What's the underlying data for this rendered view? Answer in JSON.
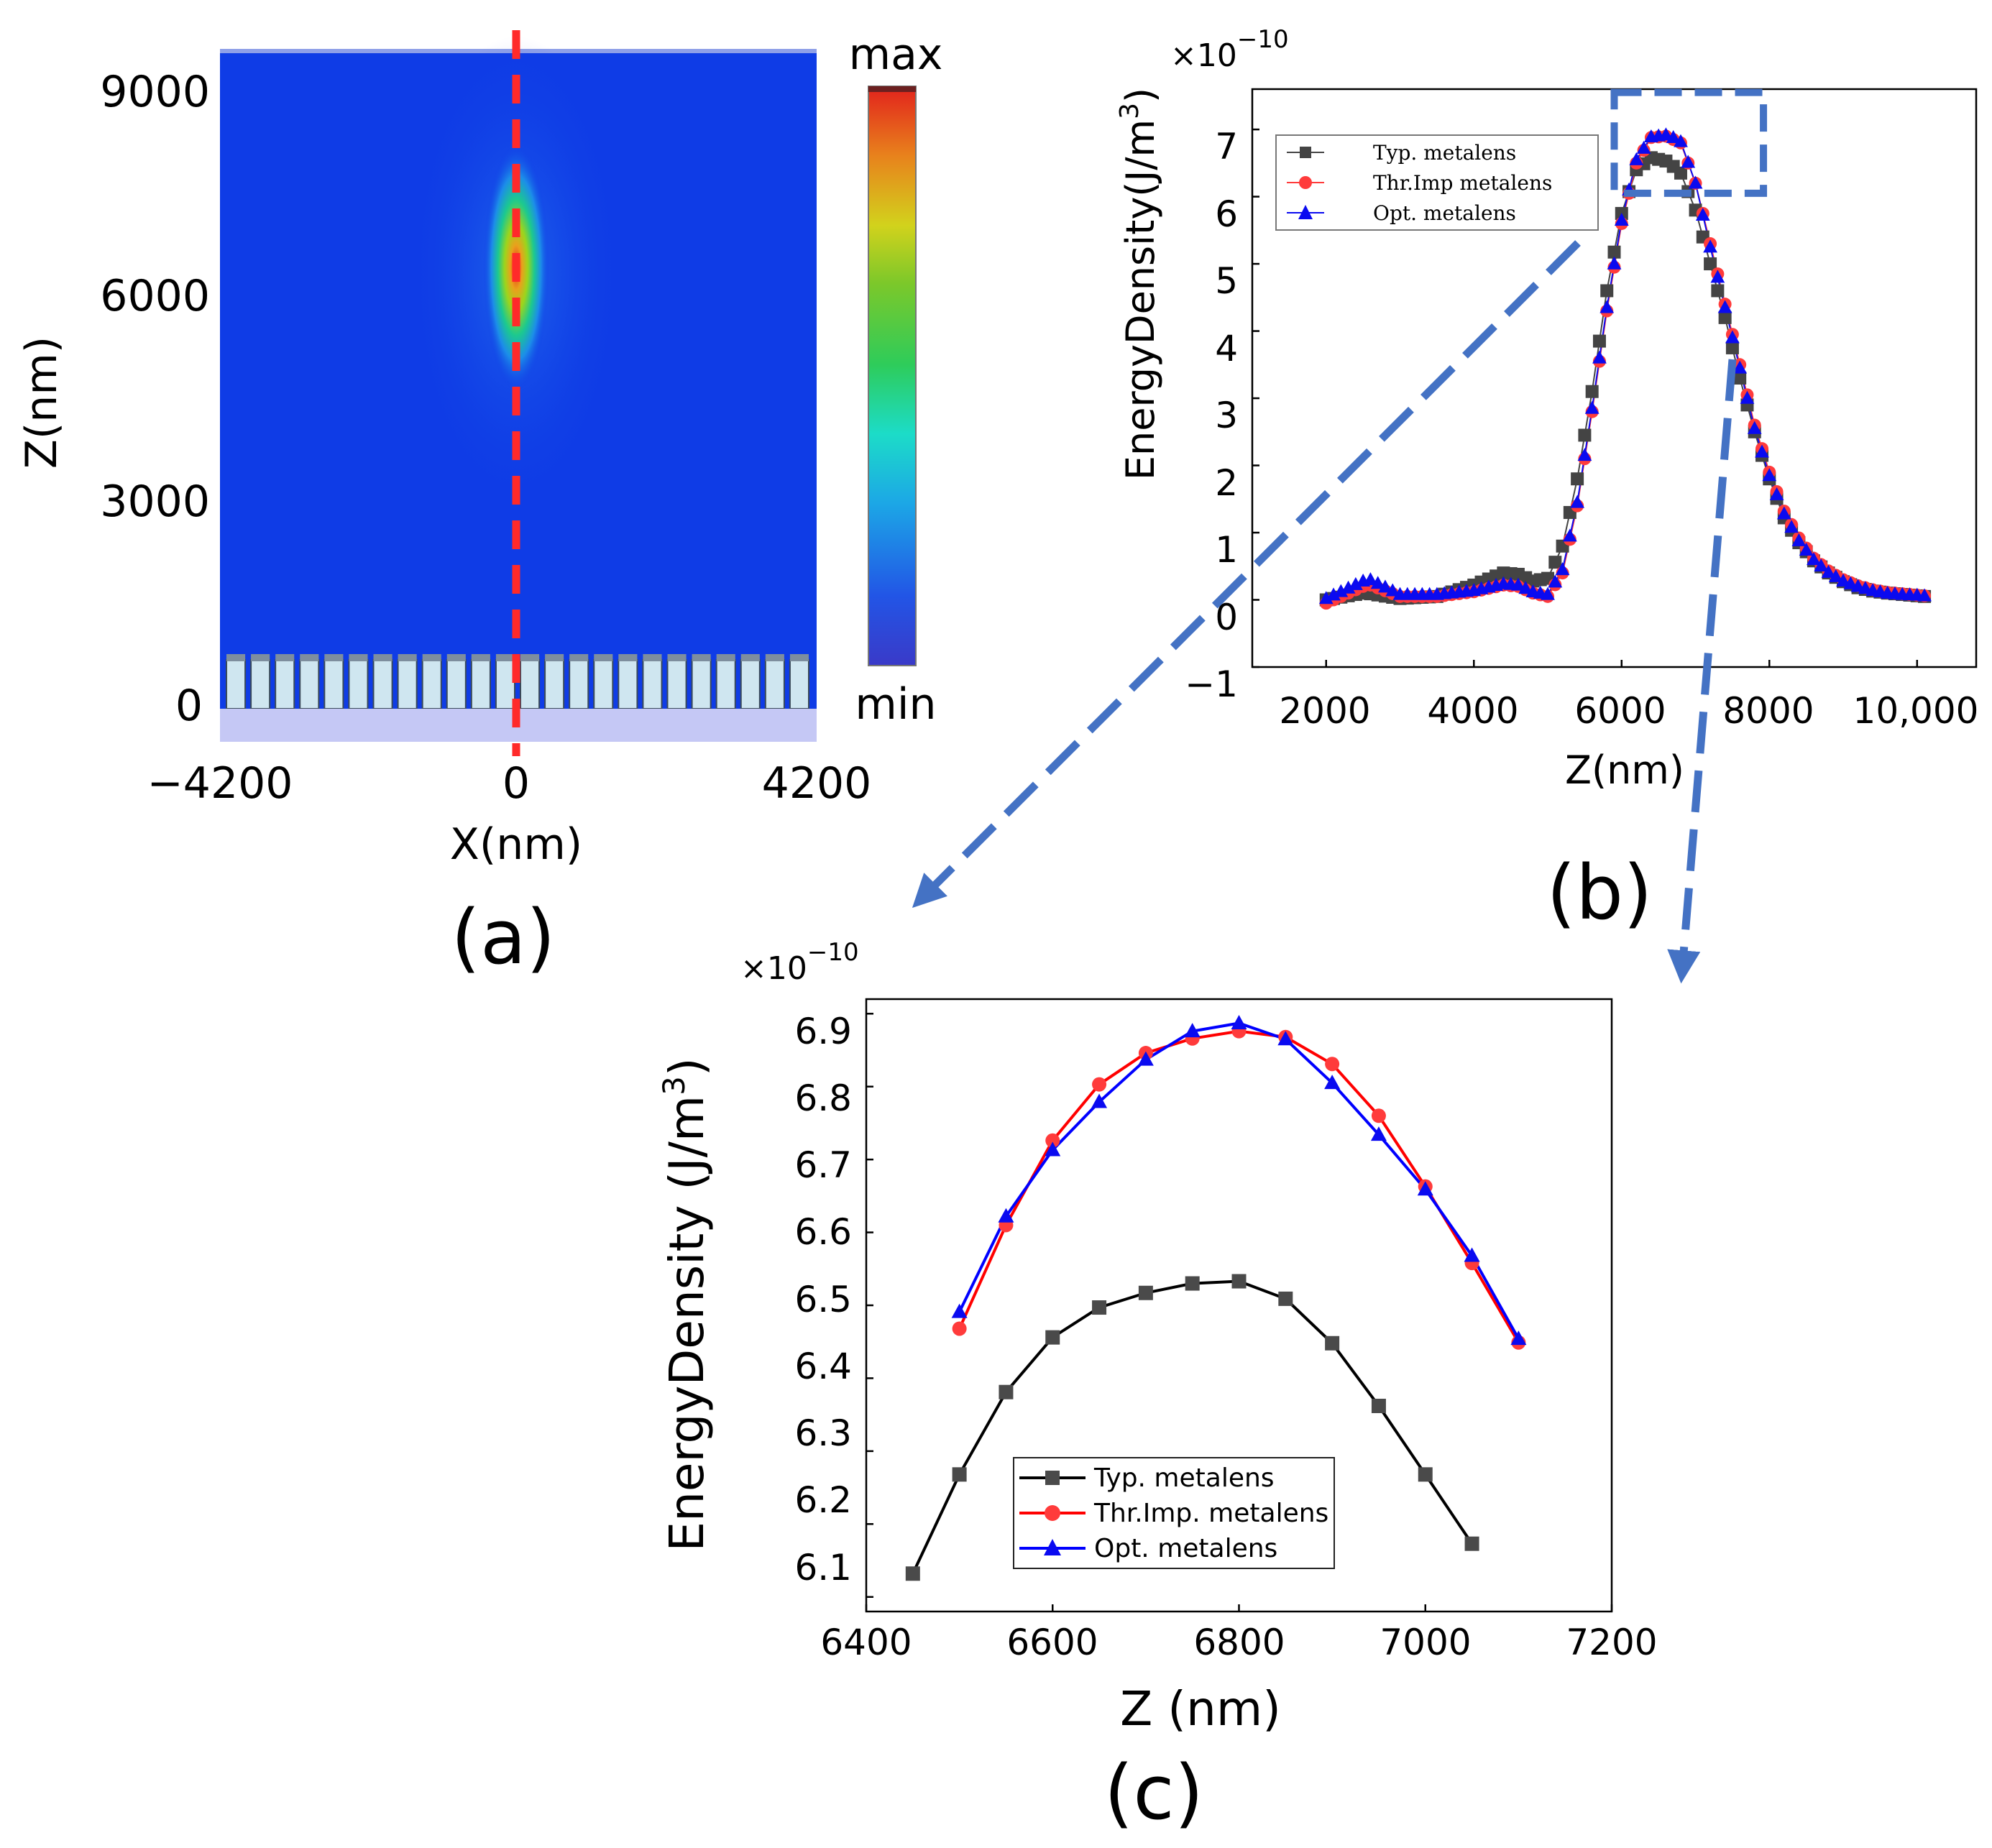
{
  "figure": {
    "panel_labels": [
      "(a)",
      "(b)",
      "(c)"
    ],
    "arrow_color": "#4472C4"
  },
  "panel_a": {
    "type": "heatmap",
    "xlabel": "X(nm)",
    "ylabel": "Z(nm)",
    "x_ticks": [
      "−4200",
      "0",
      "4200"
    ],
    "y_ticks": [
      "9000",
      "6000",
      "3000",
      "0"
    ],
    "colorbar": {
      "max_label": "max",
      "min_label": "min"
    },
    "focus_z": 6500,
    "focus_x": 0,
    "pillar_count": 24,
    "colors": {
      "background": "#0F3CE6",
      "cut_line": "#FF2A2A",
      "substrate": "#C5C8F5",
      "pillar": "#CFE6F0"
    }
  },
  "chart_data": [
    {
      "panel": "b",
      "type": "scatter",
      "xlabel": "Z(nm)",
      "ylabel": "EnergyDensity(J/m3)",
      "ylabel_main": "EnergyDensity(J/m",
      "ylabel_sup": "3",
      "ylabel_close": ")",
      "scale_base": "×10",
      "scale_exp": "−10",
      "xlim": [
        1000,
        10800
      ],
      "ylim": [
        -1,
        7.6
      ],
      "x_ticks": [
        "2000",
        "4000",
        "6000",
        "8000",
        "10,000"
      ],
      "x_tick_values": [
        2000,
        4000,
        6000,
        8000,
        10000
      ],
      "y_ticks": [
        "7",
        "6",
        "5",
        "4",
        "3",
        "2",
        "1",
        "0",
        "−1"
      ],
      "y_tick_values": [
        7,
        6,
        5,
        4,
        3,
        2,
        1,
        0,
        -1
      ],
      "zoom_box": {
        "x0": 5900,
        "x1": 7920,
        "y0": 6.05,
        "y1": 7.55
      },
      "legend": [
        "Typ. metalens",
        "Thr.Imp metalens",
        "Opt. metalens"
      ],
      "series": [
        {
          "name": "Typ. metalens",
          "color": "#444444",
          "marker": "square",
          "x": [
            2000,
            2500,
            2600,
            3000,
            3500,
            4000,
            4400,
            4600,
            4800,
            5000,
            5200,
            5400,
            5600,
            5800,
            6000,
            6200,
            6400,
            6600,
            6700,
            6800,
            7000,
            7200,
            7400,
            7600,
            7800,
            8000,
            8200,
            8400,
            8600,
            8800,
            9000,
            9200,
            9400,
            9600,
            9800,
            10000,
            10100
          ],
          "y": [
            0,
            0.1,
            0.09,
            0.02,
            0.05,
            0.22,
            0.4,
            0.38,
            0.28,
            0.32,
            0.8,
            1.8,
            3.1,
            4.6,
            5.75,
            6.4,
            6.58,
            6.53,
            6.45,
            6.35,
            5.8,
            5.0,
            4.2,
            3.3,
            2.5,
            1.8,
            1.22,
            0.85,
            0.58,
            0.4,
            0.27,
            0.18,
            0.13,
            0.1,
            0.08,
            0.06,
            0.05
          ]
        },
        {
          "name": "Thr.Imp metalens",
          "color": "#FF3B3B",
          "marker": "circle",
          "x": [
            2000,
            2500,
            2600,
            3000,
            3500,
            4000,
            4400,
            4600,
            4800,
            5000,
            5200,
            5400,
            5600,
            5800,
            6000,
            6200,
            6400,
            6600,
            6700,
            6800,
            7000,
            7200,
            7400,
            7600,
            7800,
            8000,
            8200,
            8400,
            8600,
            8800,
            9000,
            9200,
            9400,
            9600,
            9800,
            10000,
            10100
          ],
          "y": [
            -0.05,
            0.2,
            0.22,
            0.05,
            0.05,
            0.12,
            0.22,
            0.2,
            0.1,
            0.05,
            0.4,
            1.4,
            2.8,
            4.3,
            5.6,
            6.5,
            6.88,
            6.9,
            6.85,
            6.8,
            6.2,
            5.3,
            4.4,
            3.5,
            2.6,
            1.9,
            1.32,
            0.92,
            0.62,
            0.43,
            0.3,
            0.21,
            0.15,
            0.11,
            0.09,
            0.07,
            0.06
          ]
        },
        {
          "name": "Opt. metalens",
          "color": "#0A0AF0",
          "marker": "triangle",
          "x": [
            2000,
            2500,
            2600,
            3000,
            3500,
            4000,
            4400,
            4600,
            4800,
            5000,
            5200,
            5400,
            5600,
            5800,
            6000,
            6200,
            6400,
            6600,
            6700,
            6800,
            7000,
            7200,
            7400,
            7600,
            7800,
            8000,
            8200,
            8400,
            8600,
            8800,
            9000,
            9200,
            9400,
            9600,
            9800,
            10000,
            10100
          ],
          "y": [
            0.02,
            0.28,
            0.3,
            0.08,
            0.08,
            0.14,
            0.24,
            0.22,
            0.12,
            0.08,
            0.45,
            1.45,
            2.85,
            4.35,
            5.65,
            6.55,
            6.89,
            6.92,
            6.88,
            6.82,
            6.2,
            5.25,
            4.35,
            3.45,
            2.55,
            1.85,
            1.28,
            0.88,
            0.6,
            0.41,
            0.28,
            0.2,
            0.14,
            0.1,
            0.08,
            0.07,
            0.06
          ]
        }
      ]
    },
    {
      "panel": "c",
      "type": "line",
      "xlabel": "Z (nm)",
      "ylabel": "EnergyDensity (J/m3)",
      "ylabel_main": "EnergyDensity (J/m",
      "ylabel_sup": "3",
      "ylabel_close": ")",
      "scale_base": "×10",
      "scale_exp": "−10",
      "xlim": [
        6400,
        7200
      ],
      "ylim": [
        6.08,
        6.92
      ],
      "x_ticks": [
        "6400",
        "6600",
        "6800",
        "7000",
        "7200"
      ],
      "x_tick_values": [
        6400,
        6600,
        6800,
        7000,
        7200
      ],
      "y_ticks": [
        "6.9",
        "6.8",
        "6.7",
        "6.6",
        "6.5",
        "6.4",
        "6.3",
        "6.2",
        "6.1"
      ],
      "y_tick_values": [
        6.9,
        6.8,
        6.7,
        6.6,
        6.5,
        6.4,
        6.3,
        6.2,
        6.1
      ],
      "legend": [
        "Typ. metalens",
        "Thr.Imp. metalens",
        "Opt. metalens"
      ],
      "series": [
        {
          "name": "Typ. metalens",
          "color": "#000000",
          "marker_color": "#4A4A4A",
          "marker": "square",
          "x": [
            6450,
            6500,
            6550,
            6600,
            6650,
            6700,
            6750,
            6800,
            6850,
            6900,
            6950,
            7000,
            7050
          ],
          "y": [
            6.132,
            6.268,
            6.381,
            6.456,
            6.497,
            6.517,
            6.53,
            6.533,
            6.509,
            6.448,
            6.362,
            6.268,
            6.173
          ]
        },
        {
          "name": "Thr.Imp. metalens",
          "color": "#FF0000",
          "marker_color": "#FF3B3B",
          "marker": "circle",
          "x": [
            6500,
            6550,
            6600,
            6650,
            6700,
            6750,
            6800,
            6850,
            6900,
            6950,
            7000,
            7050,
            7100
          ],
          "y": [
            6.468,
            6.61,
            6.726,
            6.803,
            6.846,
            6.866,
            6.876,
            6.868,
            6.831,
            6.76,
            6.663,
            6.558,
            6.449
          ]
        },
        {
          "name": "Opt. metalens",
          "color": "#0000FF",
          "marker_color": "#0A0AF0",
          "marker": "triangle",
          "x": [
            6500,
            6550,
            6600,
            6650,
            6700,
            6750,
            6800,
            6850,
            6900,
            6950,
            7000,
            7050,
            7100
          ],
          "y": [
            6.491,
            6.622,
            6.713,
            6.779,
            6.837,
            6.876,
            6.887,
            6.865,
            6.805,
            6.734,
            6.659,
            6.568,
            6.454
          ]
        }
      ]
    }
  ]
}
